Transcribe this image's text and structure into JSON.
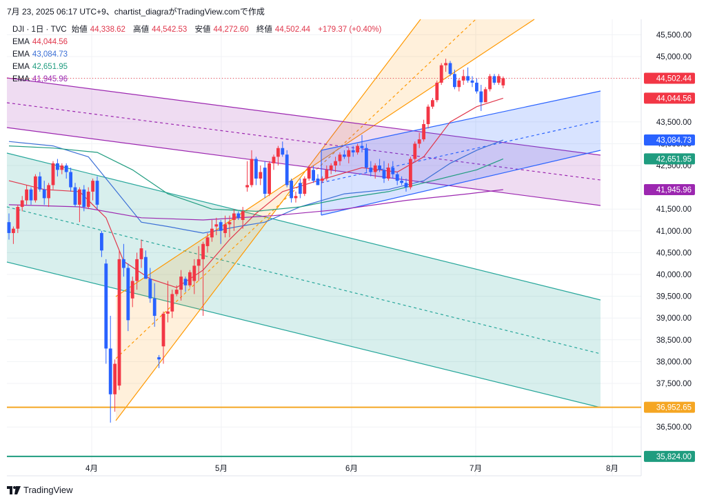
{
  "header": {
    "caption": "7月 23, 2025 06:17 UTC+9、chartist_diagraがTradingView.comで作成"
  },
  "legend": {
    "symbol": "DJI · 1日 · TVC",
    "open_label": "始値",
    "open_value": "44,338.62",
    "high_label": "高値",
    "high_value": "44,542.53",
    "low_label": "安値",
    "low_value": "44,272.60",
    "close_label": "終値",
    "close_value": "44,502.44",
    "change": "+179.37 (+0.40%)",
    "ema": [
      {
        "label": "EMA",
        "value": "44,044.56",
        "color": "#e0364b"
      },
      {
        "label": "EMA",
        "value": "43,084.73",
        "color": "#3b6fd6"
      },
      {
        "label": "EMA",
        "value": "42,651.95",
        "color": "#1f9c7f"
      },
      {
        "label": "EMA",
        "value": "41,945.96",
        "color": "#9c27b0"
      }
    ]
  },
  "footer": {
    "brand": "TradingView"
  },
  "chart_data": {
    "type": "candlestick",
    "symbol": "DJI",
    "interval": "1日",
    "source": "TVC",
    "ylim": [
      35700,
      45900
    ],
    "y_ticks": [
      45500,
      45000,
      44500,
      43500,
      43000,
      42500,
      41500,
      41000,
      40500,
      40000,
      39500,
      39000,
      38500,
      38000,
      37500,
      36500
    ],
    "y_tick_labels": [
      "45,500.00",
      "45,000.00",
      "44,500.00",
      "43,500.00",
      "43,000.00",
      "42,500.00",
      "41,500.00",
      "41,000.00",
      "40,500.00",
      "40,000.00",
      "39,500.00",
      "39,000.00",
      "38,500.00",
      "38,000.00",
      "37,500.00",
      "36,500.00"
    ],
    "x_ticks": [
      "4月",
      "5月",
      "6月",
      "7月",
      "8月"
    ],
    "grid": true,
    "price_tags": [
      {
        "value": 44502.44,
        "label": "44,502.44",
        "color": "#f23645"
      },
      {
        "value": 44044.56,
        "label": "44,044.56",
        "color": "#f23645"
      },
      {
        "value": 43084.73,
        "label": "43,084.73",
        "color": "#2962ff"
      },
      {
        "value": 42651.95,
        "label": "42,651.95",
        "color": "#1f9c7f"
      },
      {
        "value": 41945.96,
        "label": "41,945.96",
        "color": "#9c27b0"
      },
      {
        "value": 36952.65,
        "label": "36,952.65",
        "color": "#f5a623"
      },
      {
        "value": 35824.0,
        "label": "35,824.00",
        "color": "#1f9c7f"
      }
    ],
    "horizontal_lines": [
      {
        "value": 36952.65,
        "color": "#f5a623"
      },
      {
        "value": 35824.0,
        "color": "#1f9c7f"
      }
    ],
    "last_price_line": {
      "value": 44502.44,
      "color": "#f23645"
    },
    "up_color": "#f23645",
    "down_color": "#2962ff",
    "candles": [
      [
        41200,
        41400,
        40800,
        40950
      ],
      [
        40950,
        41100,
        40700,
        41050
      ],
      [
        41050,
        41600,
        40950,
        41550
      ],
      [
        41550,
        41800,
        41450,
        41700
      ],
      [
        41700,
        42050,
        41600,
        41950
      ],
      [
        41950,
        42000,
        41600,
        41700
      ],
      [
        41700,
        42300,
        41650,
        42250
      ],
      [
        42250,
        42350,
        41900,
        41950
      ],
      [
        41950,
        42150,
        41600,
        41750
      ],
      [
        41750,
        42100,
        41550,
        42050
      ],
      [
        42050,
        42600,
        41950,
        42550
      ],
      [
        42550,
        42650,
        42250,
        42400
      ],
      [
        42400,
        42550,
        42300,
        42500
      ],
      [
        42500,
        42550,
        42200,
        42350
      ],
      [
        42350,
        42450,
        41900,
        42000
      ],
      [
        42000,
        42100,
        41550,
        41600
      ],
      [
        41600,
        42000,
        41200,
        41950
      ],
      [
        41950,
        42050,
        41450,
        41550
      ],
      [
        41550,
        42000,
        41500,
        41900
      ],
      [
        41900,
        42200,
        41700,
        42150
      ],
      [
        42150,
        42250,
        41500,
        41600
      ],
      [
        40950,
        41000,
        40400,
        40550
      ],
      [
        40250,
        40350,
        37950,
        38300
      ],
      [
        38300,
        39050,
        36600,
        37250
      ],
      [
        37250,
        38050,
        36850,
        37950
      ],
      [
        37450,
        40550,
        37350,
        40350
      ],
      [
        40350,
        40700,
        39950,
        40150
      ],
      [
        40150,
        40250,
        38700,
        38950
      ],
      [
        39450,
        39950,
        39250,
        39850
      ],
      [
        39850,
        40500,
        39650,
        40350
      ],
      [
        40350,
        40800,
        40150,
        40600
      ],
      [
        40400,
        40550,
        39950,
        39900
      ],
      [
        39900,
        40150,
        39350,
        39450
      ],
      [
        39450,
        39800,
        38800,
        39050
      ],
      [
        38100,
        38150,
        37850,
        38050
      ],
      [
        38350,
        39150,
        37950,
        39100
      ],
      [
        39100,
        39850,
        38900,
        39150
      ],
      [
        39150,
        39650,
        39000,
        39550
      ],
      [
        39550,
        39750,
        39500,
        39650
      ],
      [
        39650,
        40100,
        39400,
        39950
      ],
      [
        39900,
        39950,
        39600,
        39750
      ],
      [
        39750,
        40100,
        39700,
        40050
      ],
      [
        39850,
        40350,
        39550,
        40200
      ],
      [
        40200,
        40650,
        39850,
        40350
      ],
      [
        40350,
        40750,
        39050,
        40700
      ],
      [
        40650,
        40950,
        40500,
        40850
      ],
      [
        40850,
        41250,
        40750,
        41050
      ],
      [
        41100,
        41300,
        40900,
        41150
      ],
      [
        41200,
        41250,
        40700,
        41000
      ],
      [
        40950,
        41350,
        40850,
        41150
      ],
      [
        41150,
        41350,
        40850,
        41200
      ],
      [
        41250,
        41500,
        41000,
        41400
      ],
      [
        41400,
        41450,
        41250,
        41300
      ],
      [
        41250,
        41550,
        41050,
        41450
      ],
      [
        42000,
        42600,
        41900,
        42050
      ],
      [
        42050,
        42850,
        42000,
        42650
      ],
      [
        42650,
        42700,
        42050,
        42200
      ],
      [
        42200,
        42500,
        42050,
        42350
      ],
      [
        42450,
        42600,
        41750,
        41850
      ],
      [
        41850,
        42600,
        41800,
        42550
      ],
      [
        42550,
        42750,
        42400,
        42700
      ],
      [
        42700,
        42950,
        42500,
        42900
      ],
      [
        42900,
        43050,
        42700,
        42750
      ],
      [
        42750,
        42850,
        42000,
        42050
      ],
      [
        42150,
        42200,
        41650,
        41750
      ],
      [
        41750,
        41900,
        41650,
        41800
      ],
      [
        42100,
        42200,
        41750,
        41850
      ],
      [
        41850,
        42250,
        41800,
        42200
      ],
      [
        42200,
        42500,
        42150,
        42450
      ],
      [
        42400,
        42500,
        42100,
        42150
      ],
      [
        42200,
        42300,
        42050,
        42050
      ],
      [
        42150,
        42250,
        42100,
        42200
      ],
      [
        42200,
        42500,
        42150,
        42400
      ],
      [
        42400,
        42550,
        42300,
        42500
      ],
      [
        42500,
        42700,
        42350,
        42600
      ],
      [
        42600,
        42800,
        42500,
        42750
      ],
      [
        42750,
        42850,
        42650,
        42700
      ],
      [
        42700,
        42900,
        42550,
        42850
      ],
      [
        42850,
        42950,
        42700,
        42800
      ],
      [
        42800,
        43000,
        42750,
        42950
      ],
      [
        42950,
        43200,
        42800,
        42900
      ],
      [
        42900,
        43000,
        42350,
        42450
      ],
      [
        42450,
        42600,
        42250,
        42350
      ],
      [
        42350,
        42550,
        42200,
        42500
      ],
      [
        42500,
        42650,
        42350,
        42400
      ],
      [
        42400,
        42600,
        42100,
        42200
      ],
      [
        42200,
        42550,
        42150,
        42450
      ],
      [
        42450,
        42600,
        42200,
        42300
      ],
      [
        42300,
        42350,
        42050,
        42150
      ],
      [
        42150,
        42250,
        42050,
        42100
      ],
      [
        42100,
        42200,
        41900,
        42000
      ],
      [
        42000,
        42700,
        41950,
        42650
      ],
      [
        42650,
        43050,
        42600,
        43000
      ],
      [
        43000,
        43250,
        42900,
        43100
      ],
      [
        43100,
        43550,
        43050,
        43450
      ],
      [
        43450,
        43900,
        43350,
        43850
      ],
      [
        43850,
        44050,
        43800,
        44000
      ],
      [
        44000,
        44450,
        43950,
        44400
      ],
      [
        44400,
        44850,
        44350,
        44800
      ],
      [
        44800,
        44950,
        44650,
        44850
      ],
      [
        44850,
        44900,
        44550,
        44600
      ],
      [
        44600,
        44700,
        44250,
        44300
      ],
      [
        44300,
        44500,
        44200,
        44450
      ],
      [
        44450,
        44700,
        44350,
        44550
      ],
      [
        44550,
        44750,
        44400,
        44450
      ],
      [
        44450,
        44550,
        44300,
        44400
      ],
      [
        44400,
        44500,
        44150,
        44200
      ],
      [
        44200,
        44350,
        43750,
        43950
      ],
      [
        43950,
        44300,
        43950,
        44250
      ],
      [
        44250,
        44600,
        44200,
        44550
      ],
      [
        44550,
        44600,
        44350,
        44400
      ],
      [
        44400,
        44600,
        44350,
        44550
      ],
      [
        44338.62,
        44542.53,
        44272.6,
        44502.44
      ]
    ],
    "ema_series": [
      {
        "label": "EMA",
        "value": 44044.56,
        "color": "#e0364b",
        "points": [
          [
            0,
            42150
          ],
          [
            8,
            41950
          ],
          [
            16,
            41900
          ],
          [
            22,
            41300
          ],
          [
            26,
            40300
          ],
          [
            32,
            39900
          ],
          [
            38,
            39700
          ],
          [
            44,
            40100
          ],
          [
            50,
            40800
          ],
          [
            56,
            41400
          ],
          [
            62,
            41900
          ],
          [
            70,
            42150
          ],
          [
            80,
            42450
          ],
          [
            88,
            42350
          ],
          [
            94,
            42700
          ],
          [
            100,
            43500
          ],
          [
            106,
            43850
          ],
          [
            112,
            44044
          ]
        ]
      },
      {
        "label": "EMA",
        "value": 43084.73,
        "color": "#3b6fd6",
        "points": [
          [
            0,
            43050
          ],
          [
            10,
            42950
          ],
          [
            18,
            42700
          ],
          [
            24,
            41950
          ],
          [
            30,
            41200
          ],
          [
            36,
            41100
          ],
          [
            44,
            40950
          ],
          [
            52,
            41100
          ],
          [
            58,
            41200
          ],
          [
            66,
            41550
          ],
          [
            76,
            41850
          ],
          [
            86,
            41950
          ],
          [
            94,
            42150
          ],
          [
            100,
            42550
          ],
          [
            106,
            42850
          ],
          [
            112,
            43085
          ]
        ]
      },
      {
        "label": "EMA",
        "value": 42651.95,
        "color": "#1f9c7f",
        "points": [
          [
            0,
            42950
          ],
          [
            10,
            42900
          ],
          [
            20,
            42800
          ],
          [
            28,
            42400
          ],
          [
            36,
            41850
          ],
          [
            46,
            41500
          ],
          [
            56,
            41450
          ],
          [
            66,
            41550
          ],
          [
            76,
            41750
          ],
          [
            86,
            41900
          ],
          [
            96,
            42150
          ],
          [
            106,
            42400
          ],
          [
            112,
            42652
          ]
        ]
      },
      {
        "label": "EMA",
        "value": 41945.96,
        "color": "#9c27b0",
        "points": [
          [
            0,
            41600
          ],
          [
            16,
            41550
          ],
          [
            30,
            41300
          ],
          [
            44,
            41250
          ],
          [
            60,
            41350
          ],
          [
            76,
            41500
          ],
          [
            90,
            41700
          ],
          [
            104,
            41850
          ],
          [
            112,
            41946
          ]
        ]
      }
    ]
  }
}
